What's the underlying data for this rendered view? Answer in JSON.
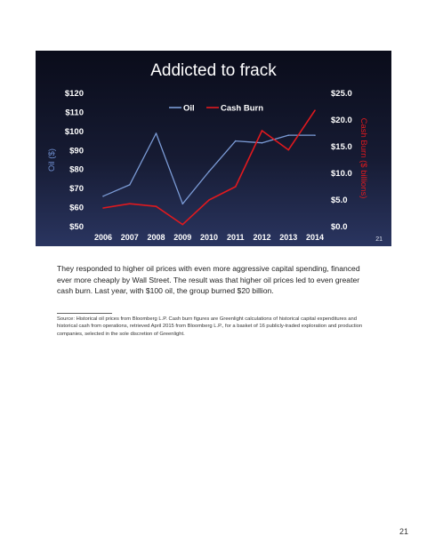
{
  "chart_data": {
    "type": "line",
    "title": "Addicted to frack",
    "x": [
      "2006",
      "2007",
      "2008",
      "2009",
      "2010",
      "2011",
      "2012",
      "2013",
      "2014"
    ],
    "series": [
      {
        "name": "Oil",
        "axis": "left",
        "color": "#7b9bd6",
        "x": [
          2006,
          2007,
          2008,
          2009,
          2010,
          2011,
          2012,
          2013,
          2014
        ],
        "values": [
          66,
          72,
          99,
          62,
          79,
          95,
          94,
          98,
          98
        ]
      },
      {
        "name": "Cash Burn",
        "axis": "right",
        "color": "#e0191e",
        "x": [
          2006,
          2007,
          2008,
          2009,
          2010,
          2011,
          2012,
          2013,
          2014
        ],
        "values": [
          3.5,
          4.3,
          3.8,
          0.4,
          5.0,
          7.5,
          18.0,
          14.4,
          21.8
        ]
      }
    ],
    "ylabel": "Oil ($)",
    "ylabel_right": "Cash Burn ($ billions)",
    "ylim": [
      50,
      120
    ],
    "ylim_right": [
      0,
      25
    ],
    "yticks_left": [
      "$50",
      "$60",
      "$70",
      "$80",
      "$90",
      "$100",
      "$110",
      "$120"
    ],
    "yticks_right": [
      "$0.0",
      "$5.0",
      "$10.0",
      "$15.0",
      "$20.0",
      "$25.0"
    ],
    "legend_position": "top-center",
    "grid": false
  },
  "slide_number": "21",
  "body_text": "They responded to higher oil prices with even more aggressive capital spending, financed ever more cheaply by Wall Street. The result was that higher oil prices led to even greater cash burn. Last year, with $100 oil, the group burned $20 billion.",
  "footnote": "Source: Historical oil prices from Bloomberg L.P.  Cash burn figures are Greenlight calculations of historical capital expenditures and historical cash from operations, retrieved April 2015 from Bloomberg L.P., for a basket of 16 publicly-traded exploration and production companies, selected in the sole discretion of Greenlight.",
  "page_number": "21"
}
